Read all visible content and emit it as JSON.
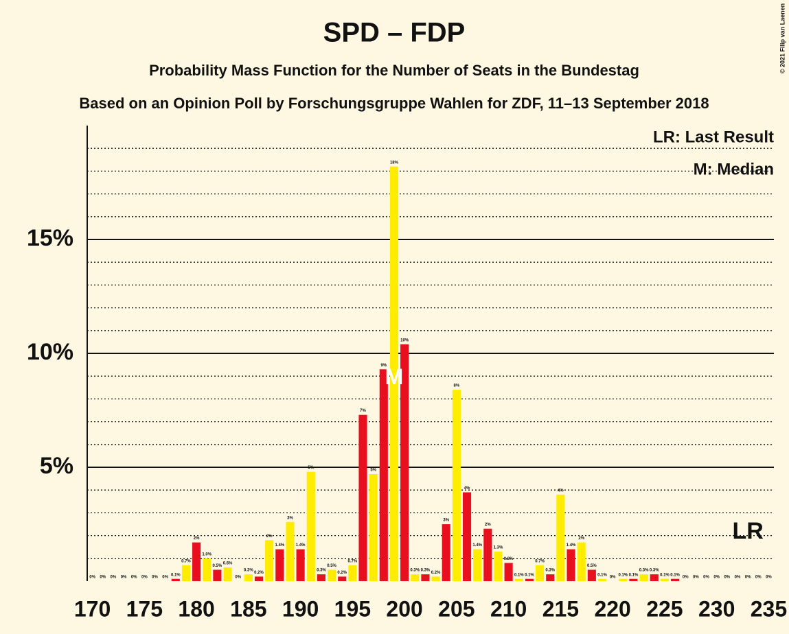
{
  "chart_data": {
    "type": "bar",
    "title": "SPD – FDP",
    "subtitle": "Probability Mass Function for the Number of Seats in the Bundestag",
    "subtitle2": "Based on an Opinion Poll by Forschungsgruppe Wahlen for ZDF, 11–13 September 2018",
    "copyright": "© 2021 Filip van Laenen",
    "legend": [
      "LR: Last Result",
      "M: Median"
    ],
    "x": [
      170,
      171,
      172,
      173,
      174,
      175,
      176,
      177,
      178,
      179,
      180,
      181,
      182,
      183,
      184,
      185,
      186,
      187,
      188,
      189,
      190,
      191,
      192,
      193,
      194,
      195,
      196,
      197,
      198,
      199,
      200,
      201,
      202,
      203,
      204,
      205,
      206,
      207,
      208,
      209,
      210,
      211,
      212,
      213,
      214,
      215,
      216,
      217,
      218,
      219,
      220,
      221,
      222,
      223,
      224,
      225,
      226,
      227,
      228,
      229,
      230,
      231,
      232,
      233,
      234,
      235
    ],
    "values": [
      0,
      0,
      0,
      0,
      0,
      0,
      0,
      0,
      0.1,
      0.7,
      1.7,
      1.0,
      0.5,
      0.6,
      0,
      0.3,
      0.2,
      1.8,
      1.4,
      2.6,
      1.4,
      4.8,
      0.3,
      0.5,
      0.2,
      0.7,
      7.3,
      4.7,
      9.3,
      18.2,
      10.4,
      0.3,
      0.3,
      0.2,
      2.5,
      8.4,
      3.9,
      1.4,
      2.3,
      1.3,
      0.8,
      0.1,
      0.1,
      0.7,
      0.3,
      3.8,
      1.4,
      1.7,
      0.5,
      0.1,
      0,
      0.1,
      0.1,
      0.3,
      0.3,
      0.1,
      0.1,
      0,
      0,
      0,
      0,
      0,
      0,
      0,
      0,
      0
    ],
    "value_labels": [
      "0%",
      "0%",
      "0%",
      "0%",
      "0%",
      "0%",
      "0%",
      "0%",
      "0.1%",
      "0.7%",
      "2%",
      "1.0%",
      "0.5%",
      "0.6%",
      "0%",
      "0.3%",
      "0.2%",
      "2%",
      "1.4%",
      "3%",
      "1.4%",
      "5%",
      "0.3%",
      "0.5%",
      "0.2%",
      "0.7%",
      "7%",
      "5%",
      "9%",
      "18%",
      "10%",
      "0.3%",
      "0.3%",
      "0.2%",
      "3%",
      "8%",
      "4%",
      "1.4%",
      "2%",
      "1.3%",
      "0.8%",
      "0.1%",
      "0.1%",
      "0.7%",
      "0.3%",
      "4%",
      "1.4%",
      "2%",
      "0.5%",
      "0.1%",
      "0%",
      "0.1%",
      "0.1%",
      "0.3%",
      "0.3%",
      "0.1%",
      "0.1%",
      "0%",
      "0%",
      "0%",
      "0%",
      "0%",
      "0%",
      "0%",
      "0%",
      "0%"
    ],
    "bar_colors": [
      "#e8101e",
      "#ffec00"
    ],
    "median": {
      "x": 199,
      "label": "M"
    },
    "last_result": {
      "x": 233,
      "label": "LR"
    },
    "xlim": [
      169.5,
      235.5
    ],
    "xticks": [
      170,
      175,
      180,
      185,
      190,
      195,
      200,
      205,
      210,
      215,
      220,
      225,
      230,
      235
    ],
    "ylim": [
      0,
      20
    ],
    "yticks": [
      {
        "value": 5,
        "label": "5%"
      },
      {
        "value": 10,
        "label": "10%"
      },
      {
        "value": 15,
        "label": "15%"
      }
    ],
    "minor_yticks": [
      1,
      2,
      3,
      4,
      6,
      7,
      8,
      9,
      11,
      12,
      13,
      14,
      16,
      17,
      18,
      19
    ],
    "grid": true
  }
}
